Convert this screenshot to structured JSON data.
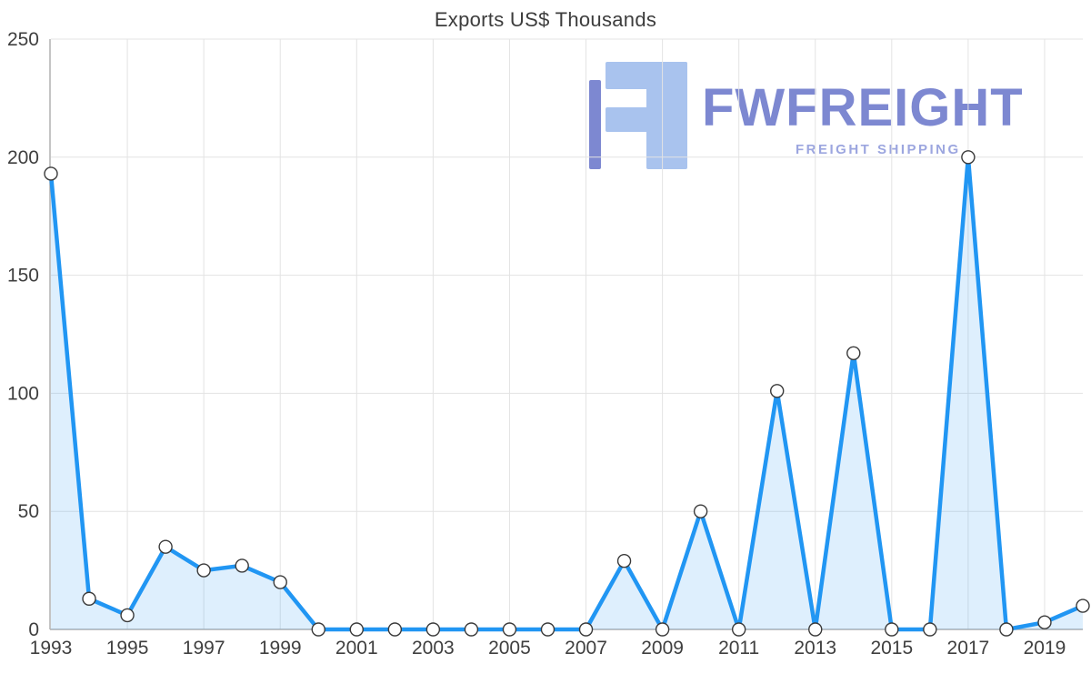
{
  "title": "Exports US$ Thousands",
  "watermark": {
    "brand": "FWFREIGHT",
    "tagline": "FREIGHT SHIPPING",
    "brand_color": "#7d88d1",
    "tagline_color": "#9ca6df",
    "logo_light": "#a9c3ee",
    "logo_dark": "#7d88d1"
  },
  "chart_data": {
    "type": "area",
    "title": "Exports US$ Thousands",
    "x": [
      1993,
      1994,
      1995,
      1996,
      1997,
      1998,
      1999,
      2000,
      2001,
      2002,
      2003,
      2004,
      2005,
      2006,
      2007,
      2008,
      2009,
      2010,
      2011,
      2012,
      2013,
      2014,
      2015,
      2016,
      2017,
      2018,
      2019,
      2020
    ],
    "values": [
      193,
      13,
      6,
      35,
      25,
      27,
      20,
      0,
      0,
      0,
      0,
      0,
      0,
      0,
      0,
      29,
      0,
      50,
      0,
      101,
      0,
      117,
      0,
      0,
      200,
      0,
      3,
      10
    ],
    "x_tick_labels": [
      "1993",
      "1995",
      "1997",
      "1999",
      "2001",
      "2003",
      "2005",
      "2007",
      "2009",
      "2011",
      "2013",
      "2015",
      "2017",
      "2019"
    ],
    "y_ticks": [
      0,
      50,
      100,
      150,
      200,
      250
    ],
    "ylim": [
      0,
      250
    ],
    "xlabel": "",
    "ylabel": "",
    "grid": true,
    "legend": "none",
    "line_color": "#2196f3",
    "fill_color": "rgba(33,150,243,0.15)",
    "marker_fill": "#ffffff",
    "marker_stroke": "#3a3a3a",
    "grid_color": "#e3e3e3",
    "axis_color": "#b0b0b0",
    "tick_color": "#3f3f3f",
    "tick_font_size": 21
  }
}
